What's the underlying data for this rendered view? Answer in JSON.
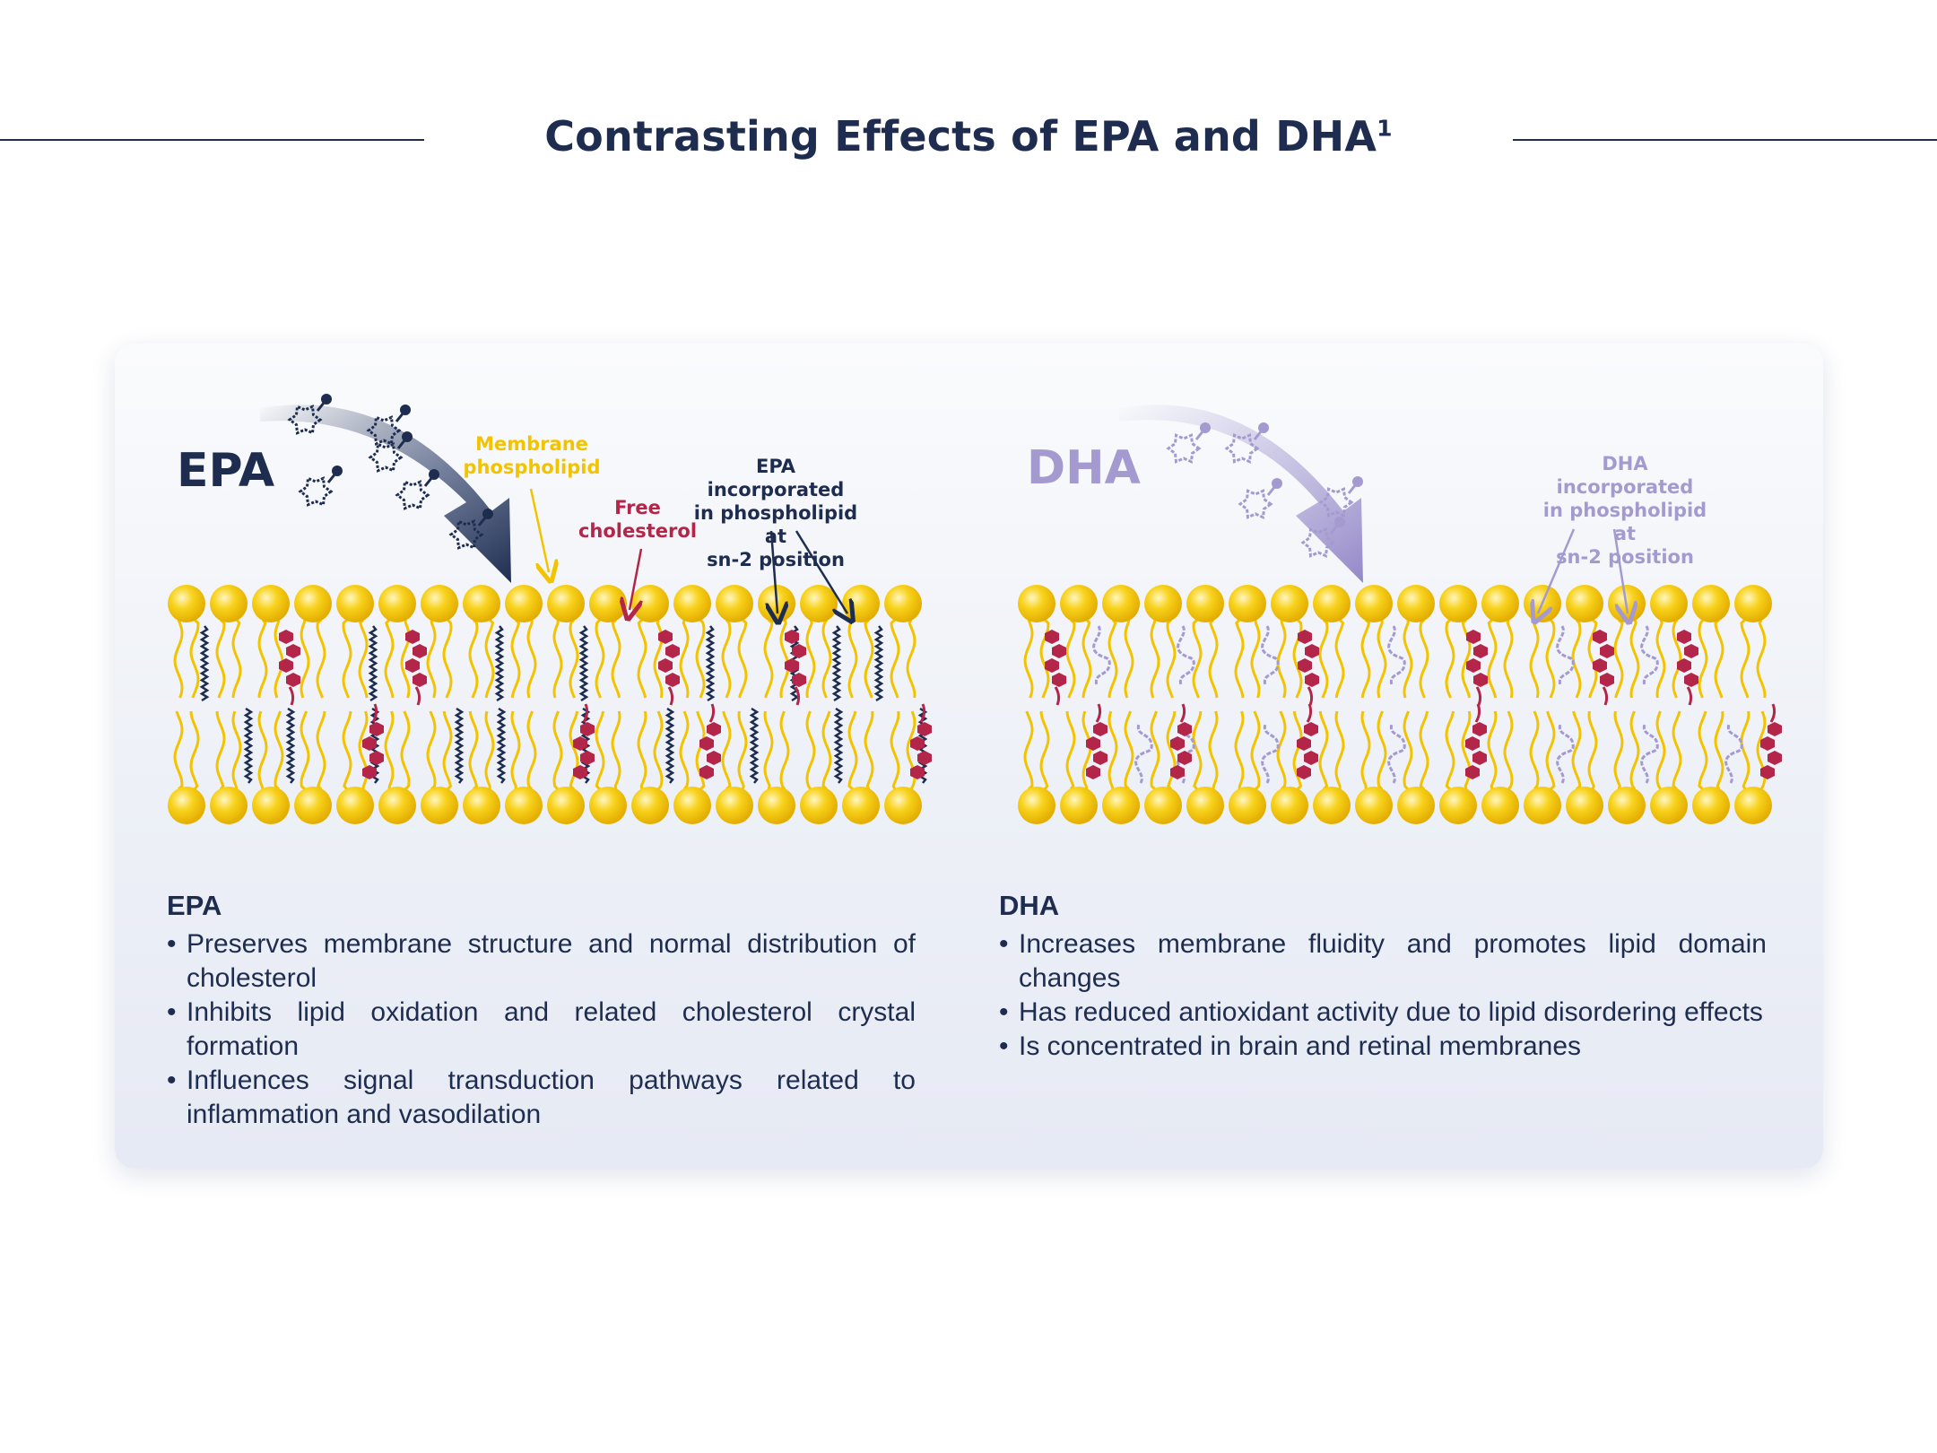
{
  "title": {
    "text": "Contrasting Effects of EPA and DHA",
    "superscript": "1"
  },
  "colors": {
    "navy": "#1e2d4f",
    "gold": "#f4c300",
    "crimson": "#b3264a",
    "lavender": "#a49ad0"
  },
  "diagram": {
    "epa": {
      "label": "EPA",
      "callouts": {
        "membrane_phospholipid": [
          "Membrane",
          "phospholipid"
        ],
        "free_cholesterol": [
          "Free",
          "cholesterol"
        ],
        "epa_incorporated": [
          "EPA incorporated",
          "in phospholipid at",
          "sn-2 position"
        ]
      }
    },
    "dha": {
      "label": "DHA",
      "callouts": {
        "dha_incorporated": [
          "DHA incorporated",
          "in phospholipid at",
          "sn-2 position"
        ]
      }
    }
  },
  "sections": {
    "epa": {
      "heading": "EPA",
      "bullets": [
        "Preserves membrane structure and normal distribution of cholesterol",
        "Inhibits lipid oxidation and related cholesterol crystal formation",
        "Influences signal transduction pathways related to inflammation and vasodilation"
      ]
    },
    "dha": {
      "heading": "DHA",
      "bullets": [
        "Increases membrane fluidity and promotes lipid domain changes",
        "Has reduced antioxidant activity due to lipid disordering effects",
        "Is concentrated in brain and retinal membranes"
      ]
    }
  }
}
